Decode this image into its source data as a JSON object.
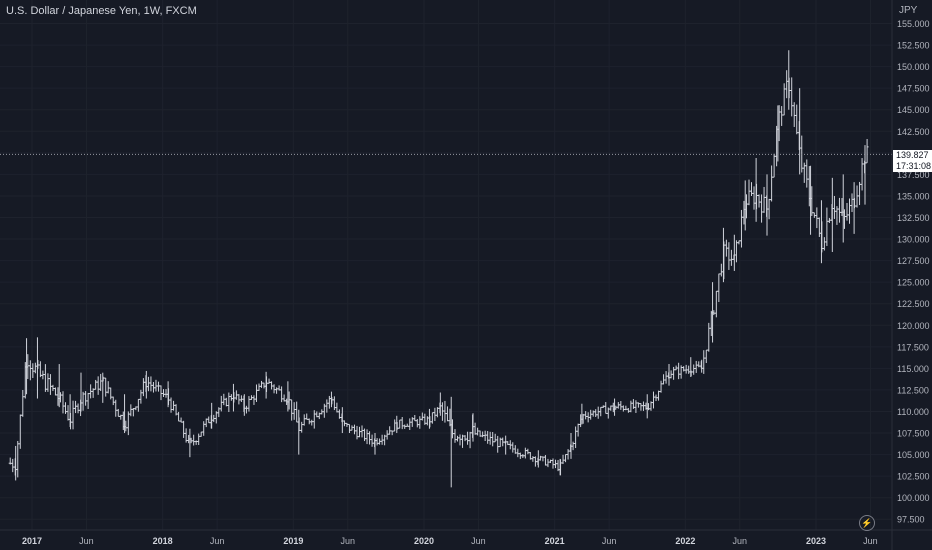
{
  "title": "U.S. Dollar / Japanese Yen, 1W, FXCM",
  "price_axis_unit": "JPY",
  "current_price": "139.827",
  "countdown": "17:31:08",
  "colors": {
    "background": "#161a25",
    "bars": "#d1d4dc",
    "axis_text": "#b2b5be",
    "grid": "#1e222d",
    "price_line": "#9598a1"
  },
  "icons": {
    "replay": "lightning-icon"
  },
  "chart_data": {
    "type": "ohlc",
    "title": "U.S. Dollar / Japanese Yen, 1W, FXCM",
    "xlabel": "",
    "ylabel": "JPY",
    "ylim": [
      96.6,
      156.8
    ],
    "y_ticks": [
      "97.500",
      "100.000",
      "102.500",
      "105.000",
      "107.500",
      "110.000",
      "112.500",
      "115.000",
      "117.500",
      "120.000",
      "122.500",
      "125.000",
      "127.500",
      "130.000",
      "132.500",
      "135.000",
      "137.500",
      "140.000",
      "142.500",
      "145.000",
      "147.500",
      "150.000",
      "152.500",
      "155.000"
    ],
    "x_ticks": [
      "2017",
      "Jun",
      "2018",
      "Jun",
      "2019",
      "Jun",
      "2020",
      "Jun",
      "2021",
      "Jun",
      "2022",
      "Jun",
      "2023",
      "Jun"
    ],
    "x_tick_dates": [
      "2017-01",
      "2017-06",
      "2018-01",
      "2018-06",
      "2019-01",
      "2019-06",
      "2020-01",
      "2020-06",
      "2021-01",
      "2021-06",
      "2022-01",
      "2022-06",
      "2023-01",
      "2023-06"
    ],
    "grid": true,
    "last_price": 139.827,
    "anchors": [
      [
        "2016-11",
        104.0,
        102,
        106
      ],
      [
        "2016-12",
        116.5,
        112,
        118.5
      ],
      [
        "2017-01",
        114.5,
        111.5,
        118.6
      ],
      [
        "2017-03",
        111.5,
        110.5,
        115.5
      ],
      [
        "2017-04",
        109.0,
        108.2,
        112
      ],
      [
        "2017-05",
        111.5,
        110,
        114.5
      ],
      [
        "2017-07",
        113.5,
        111,
        114.5
      ],
      [
        "2017-09",
        108.5,
        107.5,
        112
      ],
      [
        "2017-11",
        113.5,
        111.5,
        114.7
      ],
      [
        "2018-01",
        111.5,
        110.5,
        113.5
      ],
      [
        "2018-03",
        106.0,
        104.7,
        108
      ],
      [
        "2018-05",
        109.5,
        108,
        111
      ],
      [
        "2018-07",
        112.0,
        110,
        113.2
      ],
      [
        "2018-08",
        110.5,
        109.5,
        112
      ],
      [
        "2018-10",
        113.5,
        111.5,
        114.6
      ],
      [
        "2018-12",
        111.5,
        110,
        113.5
      ],
      [
        "2019-01",
        108.0,
        105.0,
        110.2
      ],
      [
        "2019-04",
        111.5,
        110.5,
        112.3
      ],
      [
        "2019-05",
        108.5,
        107.5,
        110.5
      ],
      [
        "2019-08",
        106.5,
        105.0,
        107.5
      ],
      [
        "2019-10",
        108.5,
        107.5,
        109.5
      ],
      [
        "2020-01",
        109.0,
        108,
        110.3
      ],
      [
        "2020-02",
        110.5,
        109.5,
        112.2
      ],
      [
        "2020-03",
        107.5,
        101.2,
        111.7
      ],
      [
        "2020-05",
        107.5,
        106.5,
        109.8
      ],
      [
        "2020-08",
        106.0,
        105.0,
        107.2
      ],
      [
        "2020-11",
        104.5,
        103.5,
        105.5
      ],
      [
        "2021-01",
        103.5,
        102.6,
        104.5
      ],
      [
        "2021-02",
        106.0,
        104.5,
        107.5
      ],
      [
        "2021-03",
        109.5,
        108.5,
        110.9
      ],
      [
        "2021-06",
        110.5,
        109.5,
        111.5
      ],
      [
        "2021-09",
        110.5,
        109.2,
        112.0
      ],
      [
        "2021-11",
        114.5,
        113.0,
        115.5
      ],
      [
        "2022-01",
        115.0,
        114.0,
        116.3
      ],
      [
        "2022-02",
        115.0,
        114.5,
        116.0
      ],
      [
        "2022-03",
        121.5,
        118,
        125
      ],
      [
        "2022-04",
        128.5,
        125,
        131.3
      ],
      [
        "2022-05",
        127.5,
        126.3,
        130.5
      ],
      [
        "2022-06",
        134.5,
        131,
        136.8
      ],
      [
        "2022-07",
        135.0,
        132,
        139.4
      ],
      [
        "2022-08",
        133.5,
        130.4,
        137.5
      ],
      [
        "2022-09",
        143.5,
        139,
        145.5
      ],
      [
        "2022-10",
        148.5,
        145,
        151.9
      ],
      [
        "2022-11",
        139.5,
        137.5,
        147.5
      ],
      [
        "2022-12",
        134.5,
        130.5,
        138.5
      ],
      [
        "2023-01",
        129.5,
        127.2,
        134.5
      ],
      [
        "2023-02",
        134.5,
        128.5,
        137.1
      ],
      [
        "2023-03",
        132.0,
        129.6,
        137.5
      ],
      [
        "2023-04",
        134.5,
        130.6,
        136.6
      ],
      [
        "2023-05",
        139.8,
        134.0,
        140.9
      ]
    ]
  }
}
